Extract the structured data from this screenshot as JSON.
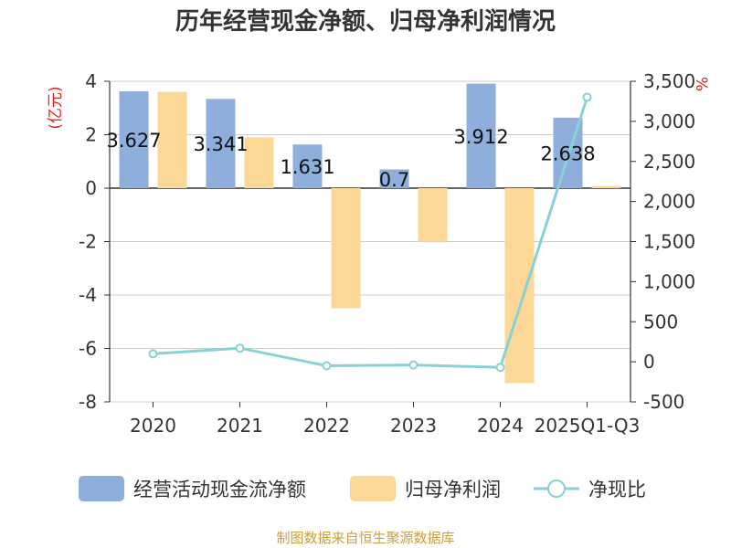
{
  "chart_data": {
    "type": "bar",
    "title": "历年经营现金净额、归母净利润情况",
    "categories": [
      "2020",
      "2021",
      "2022",
      "2023",
      "2024",
      "2025Q1-Q3"
    ],
    "series": [
      {
        "name": "经营活动现金流净额",
        "kind": "bar",
        "axis": "left",
        "color": "#8eaedb",
        "values": [
          3.627,
          3.341,
          1.631,
          0.7,
          3.912,
          2.638
        ],
        "labels": [
          "3.627",
          "3.341",
          "1.631",
          "0.7",
          "3.912",
          "2.638"
        ]
      },
      {
        "name": "归母净利润",
        "kind": "bar",
        "axis": "left",
        "color": "#fdd795",
        "values": [
          3.6,
          1.9,
          -4.5,
          -2.0,
          -7.3,
          0.08
        ]
      },
      {
        "name": "净现比",
        "kind": "line",
        "axis": "right",
        "color": "#88d2d6",
        "values": [
          100,
          170,
          -50,
          -40,
          -70,
          3300
        ]
      }
    ],
    "y_left": {
      "unit": "(亿元)",
      "min": -8,
      "max": 4,
      "ticks": [
        4,
        2,
        0,
        -2,
        -4,
        -6,
        -8
      ],
      "tick_labels": [
        "4",
        "2",
        "0",
        "-2",
        "-4",
        "-6",
        "-8"
      ]
    },
    "y_right": {
      "unit": "%",
      "min": -500,
      "max": 3500,
      "ticks": [
        3500,
        3000,
        2500,
        2000,
        1500,
        1000,
        500,
        0,
        -500
      ],
      "tick_labels": [
        "3,500",
        "3,000",
        "2,500",
        "2,000",
        "1,500",
        "1,000",
        "500",
        "0",
        "-500"
      ]
    },
    "legend_position": "bottom",
    "grid": true,
    "source": "制图数据来自恒生聚源数据库"
  }
}
